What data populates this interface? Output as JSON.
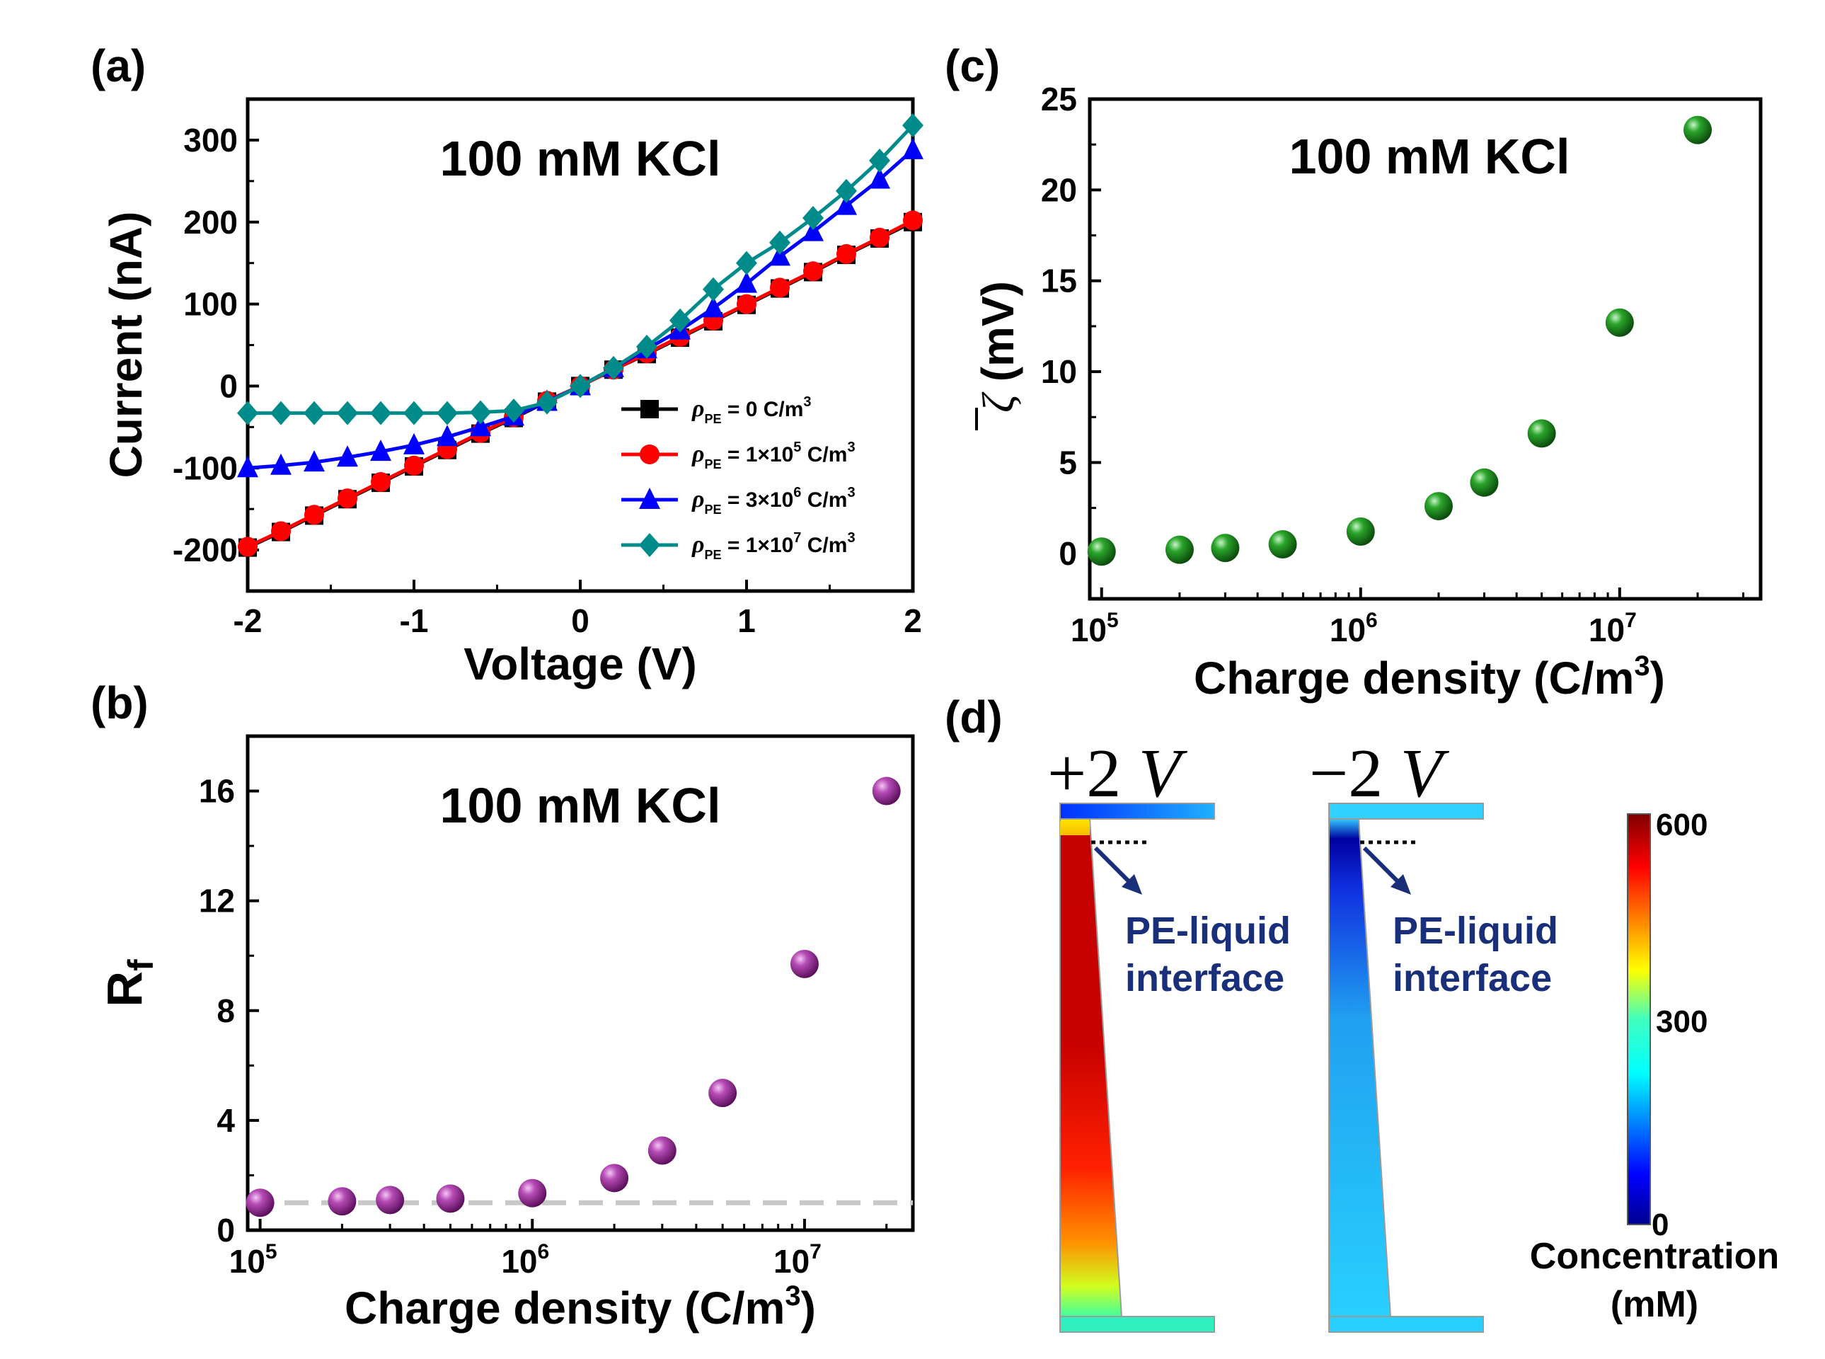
{
  "chart_data": [
    {
      "panel": "a",
      "panel_label": "(a)",
      "type": "line",
      "annotation": "100 mM KCl",
      "xlabel": "Voltage (V)",
      "ylabel": "Current (nA)",
      "xlim": [
        -2,
        2
      ],
      "ylim": [
        -250,
        350
      ],
      "xticks": [
        -2,
        -1,
        0,
        1,
        2
      ],
      "xtick_labels": [
        "-2",
        "-1",
        "0",
        "1",
        "2"
      ],
      "yticks": [
        -200,
        -100,
        0,
        100,
        200,
        300
      ],
      "ytick_labels": [
        "-200",
        "-100",
        "0",
        "100",
        "200",
        "300"
      ],
      "legend_position": "bottom-right",
      "x": [
        -2.0,
        -1.8,
        -1.6,
        -1.4,
        -1.2,
        -1.0,
        -0.8,
        -0.6,
        -0.4,
        -0.2,
        0.0,
        0.2,
        0.4,
        0.6,
        0.8,
        1.0,
        1.2,
        1.4,
        1.6,
        1.8,
        2.0
      ],
      "series": [
        {
          "name": "ρPE = 0 C/m3",
          "legend_prefix": "ρ",
          "legend_sub": "PE",
          "legend_main": " = 0 C/m",
          "legend_sup": "3",
          "color": "#000000",
          "marker": "square",
          "values": [
            -197,
            -178,
            -158,
            -138,
            -118,
            -98,
            -78,
            -58,
            -39,
            -19,
            0,
            20,
            39,
            59,
            79,
            99,
            119,
            139,
            160,
            180,
            200
          ]
        },
        {
          "name": "ρPE = 1×105 C/m3",
          "legend_prefix": "ρ",
          "legend_sub": "PE",
          "legend_main": " = 1×10",
          "legend_sup": "5",
          "legend_tail": " C/m",
          "legend_sup2": "3",
          "color": "#ff0000",
          "marker": "circle",
          "values": [
            -196,
            -177,
            -157,
            -137,
            -117,
            -97,
            -77,
            -57,
            -38,
            -18,
            0,
            20,
            40,
            60,
            80,
            100,
            120,
            140,
            161,
            181,
            202
          ]
        },
        {
          "name": "ρPE = 3×106 C/m3",
          "legend_prefix": "ρ",
          "legend_sub": "PE",
          "legend_main": " = 3×10",
          "legend_sup": "6",
          "legend_tail": " C/m",
          "legend_sup2": "3",
          "color": "#0000ff",
          "marker": "triangle",
          "values": [
            -100,
            -97,
            -93,
            -87,
            -80,
            -72,
            -62,
            -50,
            -37,
            -19,
            0,
            22,
            45,
            68,
            95,
            125,
            158,
            188,
            220,
            252,
            288
          ]
        },
        {
          "name": "ρPE = 1×107 C/m3",
          "legend_prefix": "ρ",
          "legend_sub": "PE",
          "legend_main": " = 1×10",
          "legend_sup": "7",
          "legend_tail": " C/m",
          "legend_sup2": "3",
          "color": "#008b8b",
          "marker": "diamond",
          "values": [
            -33,
            -33,
            -33,
            -33,
            -33,
            -33,
            -33,
            -32,
            -30,
            -20,
            0,
            22,
            48,
            80,
            118,
            150,
            175,
            205,
            238,
            275,
            318
          ]
        }
      ]
    },
    {
      "panel": "b",
      "panel_label": "(b)",
      "type": "scatter",
      "annotation": "100 mM KCl",
      "xlabel": "Charge density (C/m3)",
      "xlabel_main": "Charge density (C/m",
      "xlabel_sup": "3",
      "xlabel_tail": ")",
      "ylabel": "Rf",
      "ylabel_main": "R",
      "ylabel_sub": "f",
      "xscale": "log",
      "xlim": [
        90000,
        25000000
      ],
      "ylim": [
        0,
        18
      ],
      "xticks": [
        100000,
        1000000,
        10000000
      ],
      "xtick_base": "10",
      "xtick_exps": [
        "5",
        "6",
        "7"
      ],
      "yticks": [
        0,
        4,
        8,
        12,
        16
      ],
      "ytick_labels": [
        "0",
        "4",
        "8",
        "12",
        "16"
      ],
      "reference_line": 1,
      "color": "#9b2d9b",
      "x": [
        100000,
        200000,
        300000,
        500000,
        1000000,
        2000000,
        3000000,
        5000000,
        10000000,
        20000000
      ],
      "values": [
        1.0,
        1.05,
        1.1,
        1.15,
        1.35,
        1.9,
        2.9,
        5.0,
        9.7,
        16.0
      ]
    },
    {
      "panel": "c",
      "panel_label": "(c)",
      "type": "scatter",
      "annotation": "100 mM KCl",
      "xlabel": "Charge density (C/m3)",
      "xlabel_main": "Charge density (C/m",
      "xlabel_sup": "3",
      "xlabel_tail": ")",
      "ylabel": "ζ̄ (mV)",
      "ylabel_symbol": "ζ",
      "ylabel_unit": "(mV)",
      "xscale": "log",
      "xlim": [
        90000,
        35000000
      ],
      "ylim": [
        -2.5,
        25
      ],
      "xticks": [
        100000,
        1000000,
        10000000
      ],
      "xtick_base": "10",
      "xtick_exps": [
        "5",
        "6",
        "7"
      ],
      "yticks": [
        0,
        5,
        10,
        15,
        20,
        25
      ],
      "ytick_labels": [
        "0",
        "5",
        "10",
        "15",
        "20",
        "25"
      ],
      "color": "#1f8b1f",
      "x": [
        100000,
        200000,
        300000,
        500000,
        1000000,
        2000000,
        3000000,
        5000000,
        10000000,
        20000000
      ],
      "values": [
        0.1,
        0.2,
        0.3,
        0.5,
        1.2,
        2.6,
        3.9,
        6.6,
        12.7,
        23.3
      ]
    },
    {
      "panel": "d",
      "panel_label": "(d)",
      "type": "heatmap",
      "left_title": "+2 V",
      "left_title_num": "+2",
      "right_title": "−2 V",
      "right_title_num": "−2",
      "title_var": "V",
      "interface_label_line1": "PE-liquid",
      "interface_label_line2": "interface",
      "colorbar_min": 0,
      "colorbar_max": 600,
      "colorbar_ticks": [
        0,
        300,
        600
      ],
      "colorbar_tick_labels": [
        "0",
        "300",
        "600"
      ],
      "colorbar_label_line1": "Concentration",
      "colorbar_label_line2": "(mM)"
    }
  ]
}
